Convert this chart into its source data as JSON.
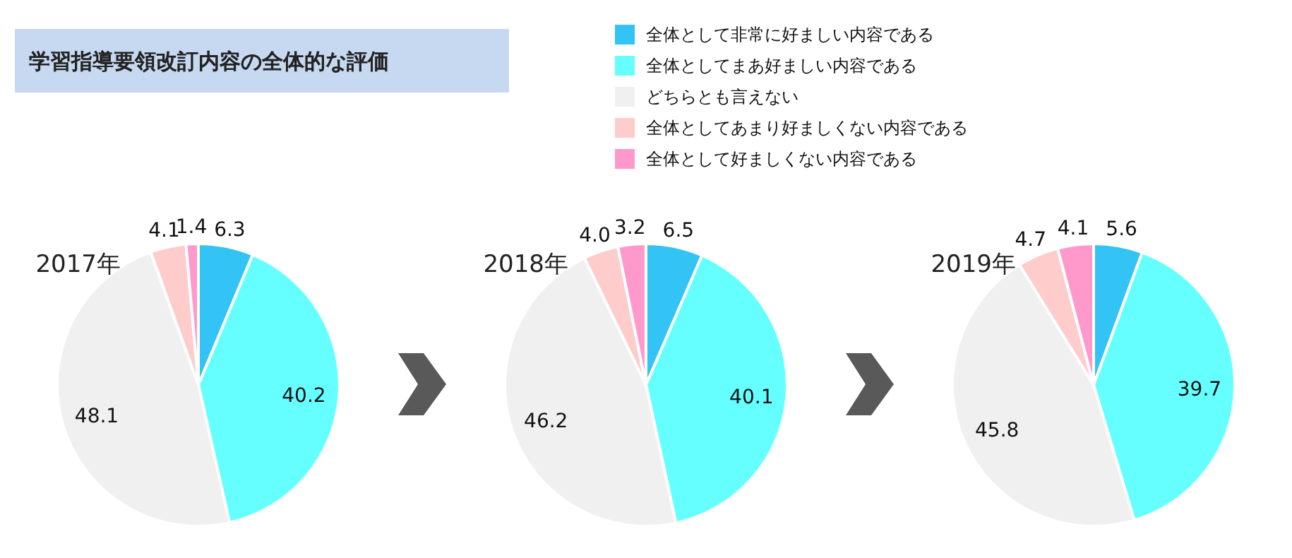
{
  "chart_data": [
    {
      "type": "pie",
      "title": "学習指導要領改訂内容の全体的な評価",
      "subtitle": "2017年",
      "legend": "top right",
      "value_labels": [
        "6.3",
        "40.2",
        "48.1",
        "4.1",
        "1.4"
      ],
      "categories": [
        "全体として非常に好ましい内容である",
        "全体としてまあ好ましい内容である",
        "どちらとも言えない",
        "全体としてあまり好ましくない内容である",
        "全体として好ましくない内容である"
      ],
      "values": [
        6.3,
        40.2,
        48.1,
        4.1,
        1.4
      ],
      "colors": [
        "#33c3f5",
        "#66ffff",
        "#f0f0f0",
        "#ffcccc",
        "#ff99cc"
      ]
    },
    {
      "type": "pie",
      "subtitle": "2018年",
      "value_labels": [
        "6.5",
        "40.1",
        "46.2",
        "4.0",
        "3.2"
      ],
      "values": [
        6.5,
        40.1,
        46.2,
        4.0,
        3.2
      ],
      "colors": [
        "#33c3f5",
        "#66ffff",
        "#f0f0f0",
        "#ffcccc",
        "#ff99cc"
      ]
    },
    {
      "type": "pie",
      "subtitle": "2019年",
      "value_labels": [
        "5.6",
        "39.7",
        "45.8",
        "4.7",
        "4.1"
      ],
      "values": [
        5.6,
        39.7,
        45.8,
        4.7,
        4.1
      ],
      "colors": [
        "#33c3f5",
        "#66ffff",
        "#f0f0f0",
        "#ffcccc",
        "#ff99cc"
      ]
    }
  ]
}
